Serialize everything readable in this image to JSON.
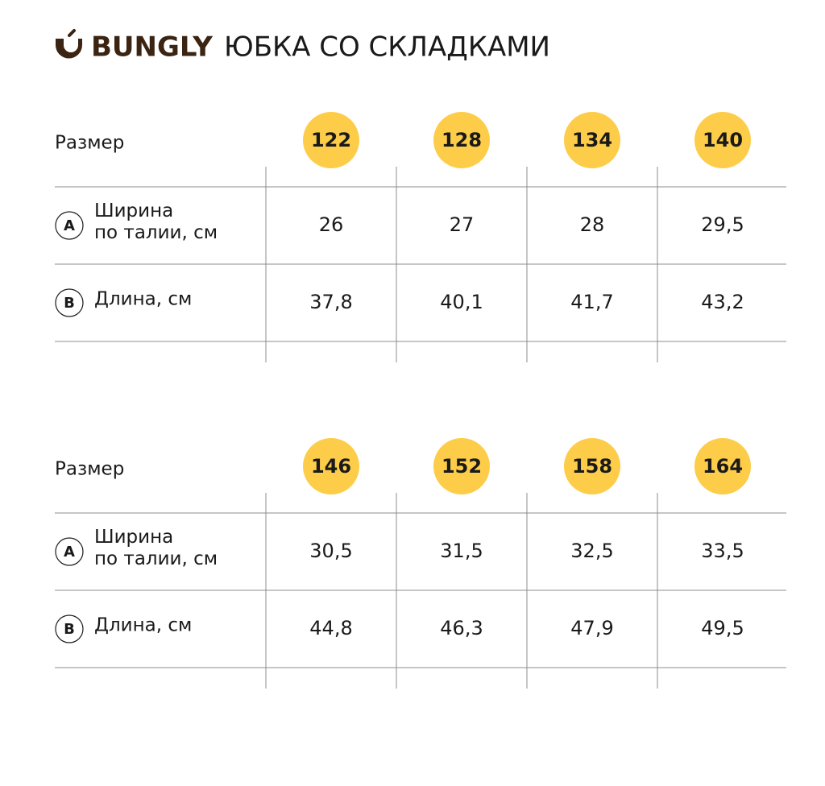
{
  "header": {
    "brand": "BUNGLY",
    "title": "ЮБКА СО СКЛАДКАМИ"
  },
  "tables": [
    {
      "size_label": "Размер",
      "sizes": [
        "122",
        "128",
        "134",
        "140"
      ],
      "rows": [
        {
          "marker": "A",
          "label": [
            "Ширина",
            "по талии, см"
          ],
          "values": [
            "26",
            "27",
            "28",
            "29,5"
          ]
        },
        {
          "marker": "B",
          "label": [
            "Длина, см"
          ],
          "values": [
            "37,8",
            "40,1",
            "41,7",
            "43,2"
          ]
        }
      ]
    },
    {
      "size_label": "Размер",
      "sizes": [
        "146",
        "152",
        "158",
        "164"
      ],
      "rows": [
        {
          "marker": "A",
          "label": [
            "Ширина",
            "по талии, см"
          ],
          "values": [
            "30,5",
            "31,5",
            "32,5",
            "33,5"
          ]
        },
        {
          "marker": "B",
          "label": [
            "Длина, см"
          ],
          "values": [
            "44,8",
            "46,3",
            "47,9",
            "49,5"
          ]
        }
      ]
    }
  ]
}
